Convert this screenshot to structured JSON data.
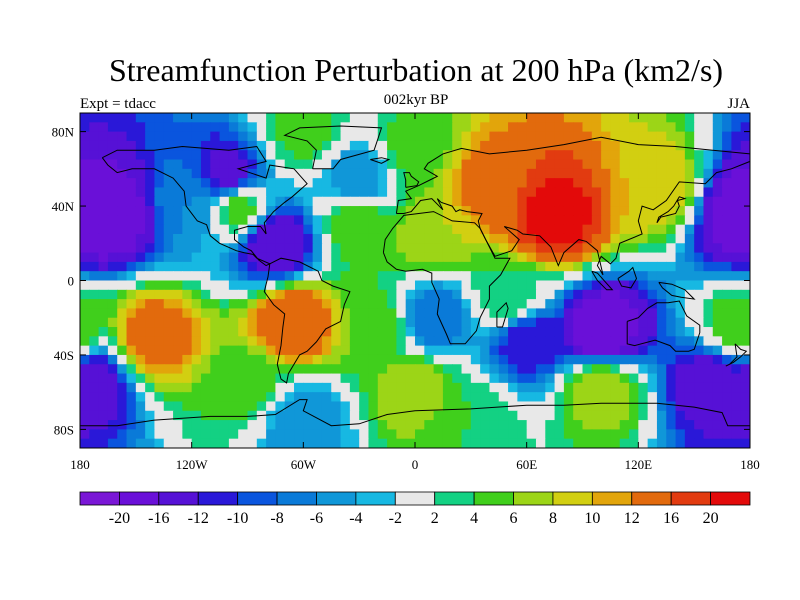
{
  "figure": {
    "title": "Streamfunction Perturbation at 200 hPa (km2/s)",
    "left_label": "Expt = tdacc",
    "center_label": "002kyr BP",
    "right_label": "JJA"
  },
  "map": {
    "projection": "cylindrical-equidistant",
    "lon_range": [
      -180,
      180
    ],
    "lat_range": [
      -90,
      90
    ],
    "missing_color": "#e6e6e6",
    "lat_ticks": [
      {
        "lat": 80,
        "label": "80N"
      },
      {
        "lat": 40,
        "label": "40N"
      },
      {
        "lat": 0,
        "label": "0"
      },
      {
        "lat": -40,
        "label": "40S"
      },
      {
        "lat": -80,
        "label": "80S"
      }
    ],
    "lon_ticks": [
      {
        "lon": -180,
        "label": "180"
      },
      {
        "lon": -120,
        "label": "120W"
      },
      {
        "lon": -60,
        "label": "60W"
      },
      {
        "lon": 0,
        "label": "0"
      },
      {
        "lon": 60,
        "label": "60E"
      },
      {
        "lon": 120,
        "label": "120E"
      },
      {
        "lon": 180,
        "label": "180"
      }
    ]
  },
  "colorbar": {
    "colors": [
      "#7a17d6",
      "#6a10d8",
      "#5611d6",
      "#2a18d8",
      "#0a55de",
      "#0a7ad8",
      "#1097d8",
      "#17b8e2",
      "#e8e8e8",
      "#13d183",
      "#40cf1c",
      "#9cd517",
      "#d2cf11",
      "#e2a50b",
      "#e26a0d",
      "#e23b10",
      "#e30a0a"
    ],
    "labels": [
      "-20",
      "-16",
      "-12",
      "-10",
      "-8",
      "-6",
      "-4",
      "-2",
      "2",
      "4",
      "6",
      "8",
      "10",
      "12",
      "16",
      "20"
    ]
  },
  "field_features": [
    {
      "lon": -165,
      "lat": 35,
      "value": -20
    },
    {
      "lon": -100,
      "lat": 55,
      "value": -14
    },
    {
      "lon": -75,
      "lat": 20,
      "value": -16
    },
    {
      "lon": -95,
      "lat": 40,
      "value": 6
    },
    {
      "lon": -120,
      "lat": 40,
      "value": -6
    },
    {
      "lon": -30,
      "lat": 55,
      "value": -6
    },
    {
      "lon": 75,
      "lat": 35,
      "value": 22
    },
    {
      "lon": 40,
      "lat": 50,
      "value": 14
    },
    {
      "lon": 130,
      "lat": 50,
      "value": 10
    },
    {
      "lon": 10,
      "lat": 25,
      "value": 8
    },
    {
      "lon": -30,
      "lat": 30,
      "value": 6
    },
    {
      "lon": 0,
      "lat": 70,
      "value": 5
    },
    {
      "lon": 175,
      "lat": 35,
      "value": -18
    },
    {
      "lon": -140,
      "lat": -30,
      "value": 14
    },
    {
      "lon": -65,
      "lat": -22,
      "value": 16
    },
    {
      "lon": -20,
      "lat": -22,
      "value": 5
    },
    {
      "lon": 10,
      "lat": -20,
      "value": -8
    },
    {
      "lon": 50,
      "lat": -10,
      "value": 4
    },
    {
      "lon": 100,
      "lat": -28,
      "value": -20
    },
    {
      "lon": 60,
      "lat": -32,
      "value": -12
    },
    {
      "lon": 175,
      "lat": -25,
      "value": 6
    },
    {
      "lon": -175,
      "lat": -55,
      "value": -14
    },
    {
      "lon": 160,
      "lat": -55,
      "value": -14
    },
    {
      "lon": 0,
      "lat": -58,
      "value": 8
    },
    {
      "lon": 100,
      "lat": -58,
      "value": 8
    },
    {
      "lon": -90,
      "lat": -55,
      "value": 5
    },
    {
      "lon": -60,
      "lat": -75,
      "value": -6
    },
    {
      "lon": 30,
      "lat": -75,
      "value": 4
    },
    {
      "lon": -60,
      "lat": 80,
      "value": 5
    }
  ]
}
